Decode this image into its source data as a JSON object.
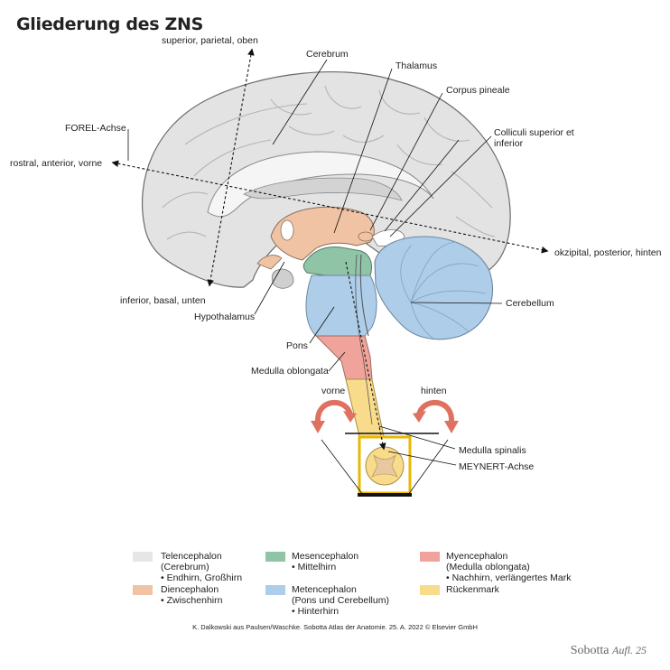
{
  "title": "Gliederung des ZNS",
  "labels": {
    "superior": "superior, parietal, oben",
    "cerebrum": "Cerebrum",
    "thalamus": "Thalamus",
    "corpus_pineale": "Corpus pineale",
    "forel": "FOREL-Achse",
    "colliculi": "Colliculi superior et inferior",
    "rostral": "rostral, anterior, vorne",
    "okzipital": "okzipital, posterior, hinten",
    "inferior": "inferior, basal, unten",
    "cerebellum": "Cerebellum",
    "hypothalamus": "Hypothalamus",
    "pons": "Pons",
    "medulla_oblongata": "Medulla oblongata",
    "vorne": "vorne",
    "hinten": "hinten",
    "medulla_spinalis": "Medulla spinalis",
    "meynert": "MEYNERT-Achse"
  },
  "legend": [
    {
      "color": "#e6e6e6",
      "name": "Telencephalon",
      "sub": "(Cerebrum)",
      "note": "• Endhirn, Großhirn"
    },
    {
      "color": "#efc3a3",
      "name": "Diencephalon",
      "sub": "",
      "note": "• Zwischenhirn"
    },
    {
      "color": "#8fc4a6",
      "name": "Mesencephalon",
      "sub": "",
      "note": "• Mittelhirn"
    },
    {
      "color": "#aecde8",
      "name": "Metencephalon",
      "sub": "(Pons und Cerebellum)",
      "note": "• Hinterhirn"
    },
    {
      "color": "#f0a39a",
      "name": "Myencephalon",
      "sub": "(Medulla oblongata)",
      "note": "• Nachhirn, verlängertes Mark"
    },
    {
      "color": "#f8dc8c",
      "name": "Rückenmark",
      "sub": "",
      "note": ""
    }
  ],
  "credit": "K. Dalkowski aus Paulsen/Waschke. Sobotta Atlas der Anatomie. 25. A. 2022 © Elsevier GmbH",
  "brand": {
    "name": "Sobotta",
    "edition": "Aufl. 25"
  }
}
